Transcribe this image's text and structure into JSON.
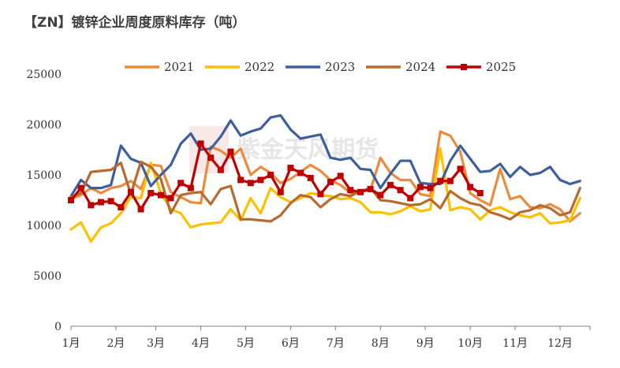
{
  "chart_data": {
    "type": "line",
    "title": "【ZN】镀锌企业周度原料库存（吨）",
    "xlabel": "",
    "ylabel": "",
    "ylim": [
      0,
      25000
    ],
    "yticks": [
      0,
      5000,
      10000,
      15000,
      20000,
      25000
    ],
    "x_range_weeks": [
      0,
      52
    ],
    "x_tick_weeks": [
      0,
      4.5,
      8.5,
      13,
      17.5,
      22,
      26.5,
      31,
      35.5,
      40,
      44.5,
      49
    ],
    "xtick_labels": [
      "1月",
      "2月",
      "3月",
      "4月",
      "5月",
      "6月",
      "7月",
      "8月",
      "9月",
      "10月",
      "11月",
      "12月"
    ],
    "legend_position": "top",
    "grid": false,
    "watermark": "紫金天风期货",
    "series": [
      {
        "name": "2021",
        "color": "#ED8B3C",
        "marker": "none",
        "values": [
          12600,
          13000,
          13700,
          13200,
          13700,
          13900,
          14400,
          13600,
          16000,
          15900,
          13300,
          12800,
          12300,
          12200,
          17800,
          17400,
          16700,
          17600,
          15000,
          15800,
          15200,
          14200,
          14600,
          15300,
          16000,
          15400,
          14500,
          14000,
          13200,
          13400,
          13500,
          16700,
          15200,
          14500,
          14500,
          13100,
          12900,
          19300,
          18900,
          17300,
          13200,
          12500,
          12000,
          15600,
          12600,
          12900,
          11800,
          11700,
          12100,
          11600,
          10400,
          11200
        ]
      },
      {
        "name": "2022",
        "color": "#FFC000",
        "marker": "none",
        "values": [
          9600,
          10300,
          8400,
          9800,
          10200,
          11200,
          12800,
          12700,
          16200,
          13200,
          11600,
          11200,
          9800,
          10100,
          10200,
          10300,
          11600,
          10500,
          12700,
          11200,
          13700,
          12800,
          12300,
          12700,
          13200,
          13000,
          12900,
          12600,
          12700,
          12300,
          11300,
          11300,
          11100,
          11400,
          11900,
          11400,
          11600,
          17600,
          11500,
          11800,
          11600,
          10600,
          11500,
          11800,
          11300,
          11000,
          10800,
          11200,
          10200,
          10300,
          10500,
          12700
        ]
      },
      {
        "name": "2023",
        "color": "#3D5F9B",
        "marker": "none",
        "values": [
          12900,
          14500,
          13700,
          13700,
          14000,
          17900,
          16600,
          16200,
          13900,
          15000,
          16000,
          18100,
          19100,
          17500,
          17600,
          18800,
          20400,
          18900,
          19300,
          19600,
          20700,
          20900,
          19500,
          18600,
          18800,
          19000,
          16700,
          16500,
          16700,
          15600,
          15500,
          13700,
          15100,
          16400,
          16400,
          14200,
          14100,
          14100,
          16400,
          17900,
          16600,
          15300,
          15400,
          16100,
          14800,
          15800,
          15000,
          15200,
          15800,
          14500,
          14100,
          14400
        ]
      },
      {
        "name": "2024",
        "color": "#B8692E",
        "marker": "none",
        "values": [
          12800,
          13200,
          15300,
          15400,
          15500,
          16200,
          13100,
          16300,
          15800,
          14600,
          11200,
          13000,
          13200,
          13300,
          12100,
          13600,
          13900,
          10600,
          10600,
          10500,
          10400,
          11000,
          12200,
          13000,
          12800,
          11800,
          12600,
          13100,
          12900,
          13400,
          13700,
          12500,
          12400,
          12200,
          12000,
          12100,
          12600,
          11700,
          13400,
          12700,
          12200,
          12000,
          11300,
          11000,
          10600,
          11300,
          11500,
          12000,
          11700,
          11000,
          11300,
          13700
        ]
      },
      {
        "name": "2025",
        "color": "#C00000",
        "marker": "square",
        "values": [
          12500,
          13700,
          12000,
          12300,
          12400,
          11800,
          13300,
          11600,
          13200,
          13000,
          12700,
          14200,
          13700,
          18100,
          16700,
          15500,
          17300,
          14500,
          14200,
          14500,
          15000,
          13300,
          15700,
          15200,
          14700,
          13100,
          14300,
          14900,
          13500,
          13300,
          13600,
          13000,
          14000,
          13500,
          12700,
          13800,
          13700,
          14400,
          14400,
          15600,
          13800,
          13200
        ]
      }
    ]
  }
}
